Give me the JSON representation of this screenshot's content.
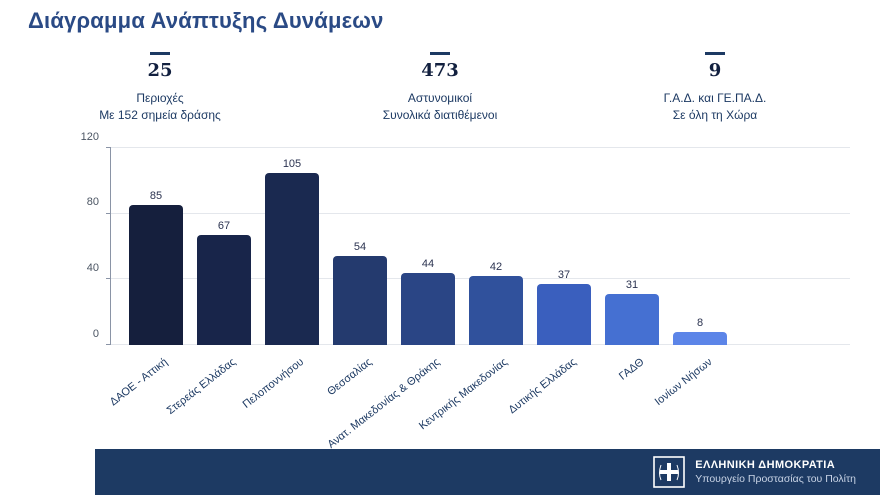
{
  "title": "Διάγραμμα Ανάπτυξης Δυνάμεων",
  "stats": [
    {
      "value": "25",
      "line1": "Περιοχές",
      "line2": "Με 152 σημεία δράσης"
    },
    {
      "value": "473",
      "line1": "Αστυνομικοί",
      "line2": "Συνολικά διατιθέμενοι"
    },
    {
      "value": "9",
      "line1": "Γ.Α.Δ. και ΓΕ.ΠΑ.Δ.",
      "line2": "Σε όλη τη Χώρα"
    }
  ],
  "chart_data": {
    "type": "bar",
    "categories": [
      "ΔΑΟΕ - Αττική",
      "Στερεάς Ελλάδας",
      "Πελοποννήσου",
      "Θεσσαλίας",
      "Ανατ. Μακεδονίας & Θράκης",
      "Κεντρικής Μακεδονίας",
      "Δυτικής Ελλάδας",
      "ΓΑΔΘ",
      "Ιονίων Νήσων"
    ],
    "values": [
      85,
      67,
      105,
      54,
      44,
      42,
      37,
      31,
      8
    ],
    "bar_colors": [
      "#151f3d",
      "#18254a",
      "#1a2950",
      "#243a6e",
      "#2a4585",
      "#30519c",
      "#3a5fbe",
      "#4570d2",
      "#5c85e8"
    ],
    "title": "",
    "xlabel": "",
    "ylabel": "",
    "ylim": [
      0,
      120
    ],
    "yticks": [
      0,
      40,
      80,
      120
    ],
    "grid": true,
    "legend": "none"
  },
  "footer": {
    "org": "ΕΛΛΗΝΙΚΗ ΔΗΜΟΚΡΑΤΙΑ",
    "ministry": "Υπουργείο Προστασίας του Πολίτη",
    "bg_color": "#1d3a63"
  },
  "colors": {
    "title_text": "#2a4a85",
    "stat_text": "#1d3a63",
    "gridline": "#e4e7ec"
  }
}
